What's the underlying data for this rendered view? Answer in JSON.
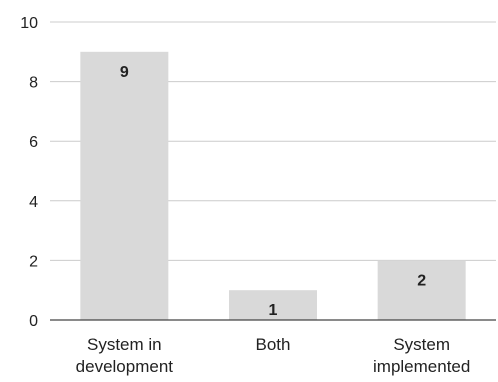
{
  "chart_data": {
    "type": "bar",
    "title": "",
    "xlabel": "",
    "ylabel": "",
    "categories": [
      [
        "System in",
        "development"
      ],
      [
        "Both"
      ],
      [
        "System",
        "implemented"
      ]
    ],
    "values": [
      9,
      1,
      2
    ],
    "data_labels": [
      "9",
      "1",
      "2"
    ],
    "ylim": [
      0,
      10
    ],
    "yticks": [
      0,
      2,
      4,
      6,
      8,
      10
    ],
    "grid": true,
    "legend": "none",
    "colors": {
      "bar": "#d9d9d9",
      "grid": "#cccccc",
      "axis": "#444444",
      "text": "#222222"
    }
  }
}
